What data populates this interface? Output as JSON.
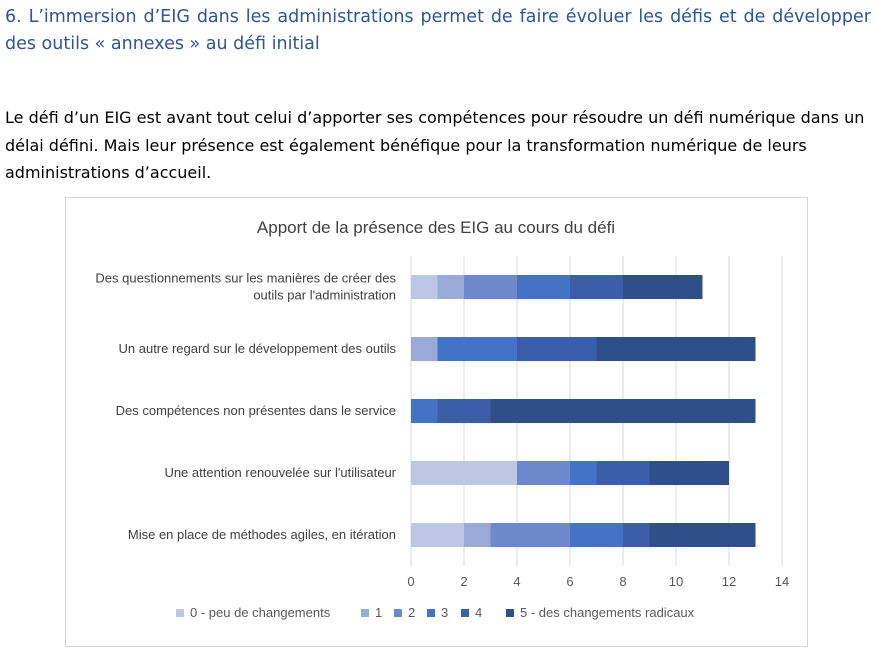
{
  "heading": "6. L’immersion d’EIG dans les administrations permet de faire évoluer les défis et de développer des outils « annexes » au défi initial",
  "paragraph": "Le défi d’un  EIG est avant tout celui d’apporter ses compétences pour résoudre un défi numérique dans un délai défini. Mais leur présence est également bénéfique pour la transformation numérique de leurs administrations d’accueil.",
  "chart_data": {
    "type": "bar",
    "orientation": "horizontal",
    "stacked": true,
    "title": "Apport de la présence des EIG au cours du défi",
    "categories": [
      [
        "Des questionnements sur les manières de créer des",
        "outils par l'administration"
      ],
      [
        "Un autre regard sur le développement des outils"
      ],
      [
        "Des compétences non présentes dans le service"
      ],
      [
        "Une attention renouvelée sur l'utilisateur"
      ],
      [
        "Mise en place de méthodes agiles, en itération"
      ]
    ],
    "series": [
      {
        "name": "0 - peu de changements",
        "color": "#bcc7e3",
        "values": [
          1,
          0,
          0,
          4,
          2
        ]
      },
      {
        "name": "1",
        "color": "#9aaad8",
        "values": [
          1,
          1,
          0,
          0,
          1
        ]
      },
      {
        "name": "2",
        "color": "#6d88cb",
        "values": [
          2,
          0,
          0,
          2,
          3
        ]
      },
      {
        "name": "3",
        "color": "#4472c4",
        "values": [
          2,
          3,
          1,
          1,
          2
        ]
      },
      {
        "name": "4",
        "color": "#3b5ea8",
        "values": [
          2,
          3,
          2,
          2,
          1
        ]
      },
      {
        "name": "5 - des changements radicaux",
        "color": "#2f4f8b",
        "values": [
          3,
          6,
          10,
          3,
          4
        ]
      }
    ],
    "xlim": [
      0,
      14
    ],
    "xticks": [
      0,
      2,
      4,
      6,
      8,
      10,
      12,
      14
    ],
    "grid": true,
    "legend_position": "bottom"
  }
}
